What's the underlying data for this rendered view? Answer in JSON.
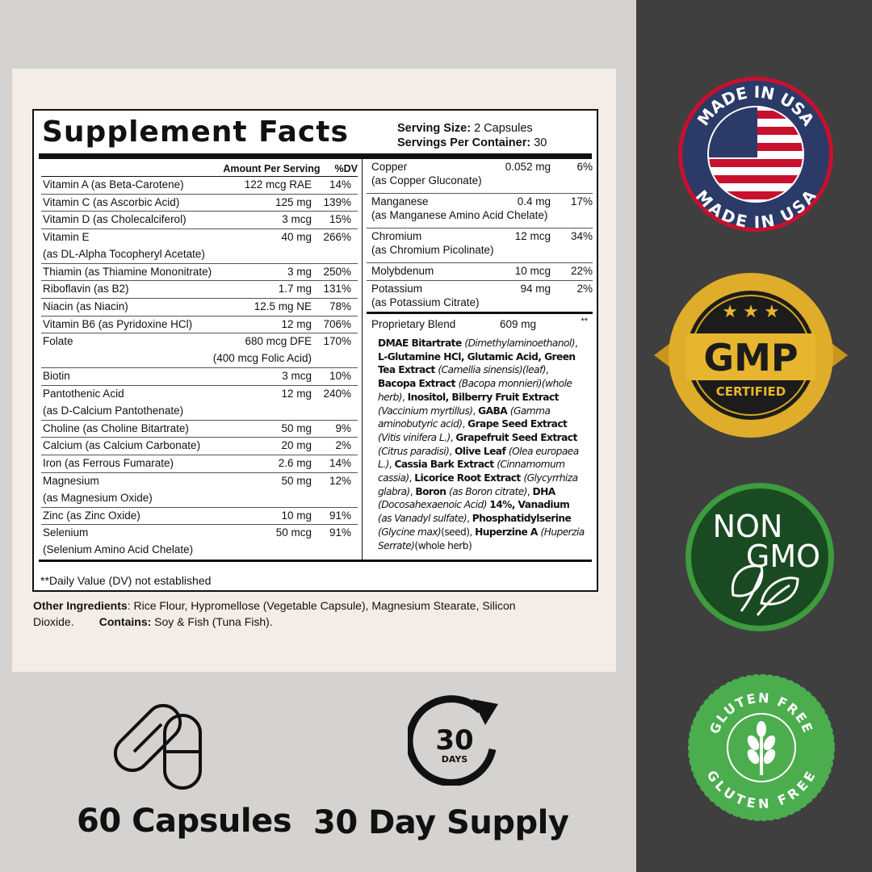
{
  "label": {
    "title": "Supplement Facts",
    "serving_size_label": "Serving Size:",
    "serving_size": "2 Capsules",
    "servings_label": "Servings Per Container:",
    "servings": "30",
    "header_amount": "Amount Per Serving",
    "header_dv": "%DV",
    "left_rows": [
      {
        "name": "Vitamin A (as Beta-Carotene)",
        "amount": "122 mcg RAE",
        "dv": "14%"
      },
      {
        "name": "Vitamin C (as Ascorbic Acid)",
        "amount": "125 mg",
        "dv": "139%"
      },
      {
        "name": "Vitamin D (as Cholecalciferol)",
        "amount": "3 mcg",
        "dv": "15%"
      },
      {
        "name": "Vitamin E",
        "name2": "(as DL-Alpha Tocopheryl Acetate)",
        "amount": "40 mg",
        "dv": "266%"
      },
      {
        "name": "Thiamin (as Thiamine Mononitrate)",
        "amount": "3 mg",
        "dv": "250%"
      },
      {
        "name": "Riboflavin (as B2)",
        "amount": "1.7 mg",
        "dv": "131%"
      },
      {
        "name": "Niacin (as Niacin)",
        "amount": "12.5 mg NE",
        "dv": "78%"
      },
      {
        "name": "Vitamin B6 (as Pyridoxine HCl)",
        "amount": "12 mg",
        "dv": "706%"
      },
      {
        "name": "Folate",
        "amount": "680 mcg DFE",
        "amount2": "(400 mcg Folic Acid)",
        "dv": "170%"
      },
      {
        "name": "Biotin",
        "amount": "3 mcg",
        "dv": "10%"
      },
      {
        "name": "Pantothenic Acid",
        "name2": "(as D-Calcium Pantothenate)",
        "amount": "12 mg",
        "dv": "240%"
      },
      {
        "name": "Choline (as Choline Bitartrate)",
        "amount": "50 mg",
        "dv": "9%"
      },
      {
        "name": "Calcium (as Calcium Carbonate)",
        "amount": "20 mg",
        "dv": "2%"
      },
      {
        "name": "Iron (as Ferrous Fumarate)",
        "amount": "2.6 mg",
        "dv": "14%"
      },
      {
        "name": "Magnesium",
        "name2": "(as Magnesium Oxide)",
        "amount": "50 mg",
        "dv": "12%"
      },
      {
        "name": "Zinc (as Zinc Oxide)",
        "amount": "10 mg",
        "dv": "91%"
      },
      {
        "name": "Selenium",
        "name2": "(Selenium Amino Acid Chelate)",
        "amount": "50 mcg",
        "dv": "91%"
      }
    ],
    "right_rows": [
      {
        "name": "Copper",
        "name2": "(as Copper Gluconate)",
        "amount": "0.052 mg",
        "dv": "6%"
      },
      {
        "name": "Manganese",
        "name2": "(as Manganese Amino Acid Chelate)",
        "amount": "0.4 mg",
        "dv": "17%"
      },
      {
        "name": "Chromium",
        "name2": "(as Chromium Picolinate)",
        "amount": "12 mcg",
        "dv": "34%"
      },
      {
        "name": "Molybdenum",
        "amount": "10 mcg",
        "dv": "22%"
      },
      {
        "name": "Potassium",
        "name2": "(as Potassium Citrate)",
        "amount": "94 mg",
        "dv": "2%"
      }
    ],
    "blend": {
      "name": "Proprietary Blend",
      "amount": "609 mg",
      "dv": "**",
      "ingredients": [
        [
          "b",
          "DMAE Bitartrate "
        ],
        [
          "i",
          "(Dimethylaminoethanol)"
        ],
        [
          "t",
          ", "
        ],
        [
          "b",
          "L-Glutamine HCl, Glutamic Acid, Green Tea Extract "
        ],
        [
          "i",
          "(Camellia sinensis)(leaf)"
        ],
        [
          "t",
          ", "
        ],
        [
          "b",
          "Bacopa Extract "
        ],
        [
          "i",
          "(Bacopa monnieri)(whole herb)"
        ],
        [
          "t",
          ", "
        ],
        [
          "b",
          "Inositol, Bilberry Fruit Extract "
        ],
        [
          "i",
          "(Vaccinium myrtillus)"
        ],
        [
          "t",
          ", "
        ],
        [
          "b",
          "GABA "
        ],
        [
          "i",
          "(Gamma aminobutyric acid)"
        ],
        [
          "t",
          ", "
        ],
        [
          "b",
          "Grape Seed Extract "
        ],
        [
          "i",
          "(Vitis vinifera L.)"
        ],
        [
          "t",
          ", "
        ],
        [
          "b",
          "Grapefruit Seed Extract "
        ],
        [
          "i",
          "(Citrus paradisi)"
        ],
        [
          "t",
          ", "
        ],
        [
          "b",
          "Olive Leaf "
        ],
        [
          "i",
          "(Olea europaea L.)"
        ],
        [
          "t",
          ", "
        ],
        [
          "b",
          "Cassia Bark Extract "
        ],
        [
          "i",
          "(Cinnamomum cassia)"
        ],
        [
          "t",
          ", "
        ],
        [
          "b",
          "Licorice Root Extract "
        ],
        [
          "i",
          "(Glycyrrhiza glabra)"
        ],
        [
          "t",
          ", "
        ],
        [
          "b",
          "Boron "
        ],
        [
          "i",
          "(as Boron citrate)"
        ],
        [
          "t",
          ", "
        ],
        [
          "b",
          "DHA "
        ],
        [
          "i",
          "(Docosahexaenoic Acid) "
        ],
        [
          "b",
          "14%, Vanadium "
        ],
        [
          "i",
          "(as Vanadyl sulfate)"
        ],
        [
          "t",
          ", "
        ],
        [
          "b",
          "Phosphatidylserine "
        ],
        [
          "i",
          "(Glycine max)"
        ],
        [
          "t",
          "(seed), "
        ],
        [
          "b",
          "Huperzine A "
        ],
        [
          "i",
          "(Huperzia Serrate)"
        ],
        [
          "t",
          "(whole herb)"
        ]
      ]
    },
    "dv_note": "**Daily Value (DV) not established",
    "other_label": "Other Ingredients",
    "other_text": ": Rice Flour, Hypromellose (Vegetable Capsule), Magnesium Stearate, Silicon Dioxide.",
    "contains_label": "Contains:",
    "contains_text": "Soy & Fish (Tuna Fish)."
  },
  "badges": {
    "usa": {
      "text": "MADE IN USA",
      "colors": {
        "ring": "#c8102e",
        "navy": "#2b3a67"
      }
    },
    "gmp": {
      "text": "GMP",
      "sub": "CERTIFIED",
      "colors": {
        "gold": "#d9a520"
      }
    },
    "nongmo": {
      "line1": "NON",
      "line2": "GMO",
      "colors": {
        "green": "#1e5a2c"
      }
    },
    "gluten": {
      "text": "GLUTEN FREE",
      "colors": {
        "green": "#4cad4f"
      }
    }
  },
  "features": {
    "capsules": "60 Capsules",
    "supply": "30 Day Supply",
    "days_number": "30",
    "days_label": "DAYS"
  }
}
